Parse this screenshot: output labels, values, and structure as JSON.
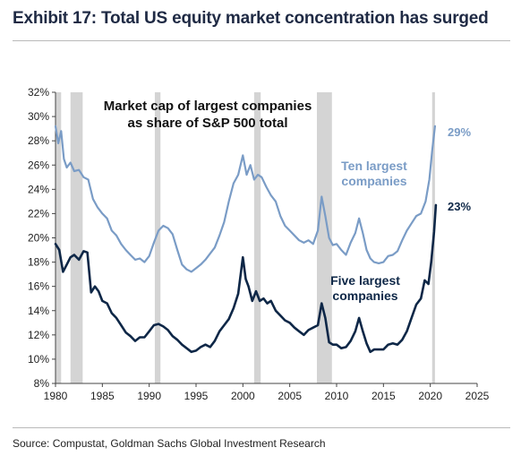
{
  "header": {
    "title": "Exhibit 17: Total US equity market concentration has surged"
  },
  "footer": {
    "source": "Source: Compustat, Goldman Sachs Global Investment Research"
  },
  "chart_data": {
    "type": "line",
    "annotation": [
      "Market cap of largest companies",
      "as share of S&P 500 total"
    ],
    "xlim": [
      1980,
      2025
    ],
    "ylim": [
      8,
      32
    ],
    "x_ticks": [
      1980,
      1985,
      1990,
      1995,
      2000,
      2005,
      2010,
      2015,
      2020,
      2025
    ],
    "y_ticks": [
      8,
      10,
      12,
      14,
      16,
      18,
      20,
      22,
      24,
      26,
      28,
      30,
      32
    ],
    "y_tick_suffix": "%",
    "grid": false,
    "recession_shading": [
      [
        1980.0,
        1980.6
      ],
      [
        1981.6,
        1982.9
      ],
      [
        1990.6,
        1991.2
      ],
      [
        2001.2,
        2001.9
      ],
      [
        2007.9,
        2009.5
      ],
      [
        2020.2,
        2020.5
      ]
    ],
    "series": [
      {
        "name": "Ten largest companies",
        "label_lines": [
          "Ten largest",
          "companies"
        ],
        "end_label": "29%",
        "color": "#7a9cc6",
        "points": [
          [
            1980.0,
            29.2
          ],
          [
            1980.3,
            27.8
          ],
          [
            1980.6,
            28.8
          ],
          [
            1980.9,
            26.5
          ],
          [
            1981.2,
            25.8
          ],
          [
            1981.6,
            26.2
          ],
          [
            1982.0,
            25.5
          ],
          [
            1982.5,
            25.6
          ],
          [
            1983.0,
            25.0
          ],
          [
            1983.5,
            24.8
          ],
          [
            1984.0,
            23.2
          ],
          [
            1984.5,
            22.5
          ],
          [
            1985.0,
            22.0
          ],
          [
            1985.5,
            21.6
          ],
          [
            1986.0,
            20.6
          ],
          [
            1986.5,
            20.2
          ],
          [
            1987.0,
            19.5
          ],
          [
            1987.5,
            19.0
          ],
          [
            1988.0,
            18.6
          ],
          [
            1988.5,
            18.2
          ],
          [
            1989.0,
            18.3
          ],
          [
            1989.5,
            18.0
          ],
          [
            1990.0,
            18.5
          ],
          [
            1990.5,
            19.6
          ],
          [
            1991.0,
            20.6
          ],
          [
            1991.5,
            21.0
          ],
          [
            1992.0,
            20.8
          ],
          [
            1992.5,
            20.3
          ],
          [
            1993.0,
            19.0
          ],
          [
            1993.5,
            17.8
          ],
          [
            1994.0,
            17.4
          ],
          [
            1994.5,
            17.2
          ],
          [
            1995.0,
            17.5
          ],
          [
            1995.5,
            17.8
          ],
          [
            1996.0,
            18.2
          ],
          [
            1996.5,
            18.7
          ],
          [
            1997.0,
            19.2
          ],
          [
            1997.5,
            20.2
          ],
          [
            1998.0,
            21.3
          ],
          [
            1998.5,
            23.0
          ],
          [
            1999.0,
            24.5
          ],
          [
            1999.5,
            25.2
          ],
          [
            2000.0,
            26.8
          ],
          [
            2000.4,
            25.2
          ],
          [
            2000.8,
            26.0
          ],
          [
            2001.2,
            24.8
          ],
          [
            2001.6,
            25.2
          ],
          [
            2002.0,
            25.0
          ],
          [
            2002.5,
            24.2
          ],
          [
            2003.0,
            23.5
          ],
          [
            2003.5,
            23.0
          ],
          [
            2004.0,
            21.8
          ],
          [
            2004.5,
            21.0
          ],
          [
            2005.0,
            20.6
          ],
          [
            2005.5,
            20.2
          ],
          [
            2006.0,
            19.8
          ],
          [
            2006.5,
            19.6
          ],
          [
            2007.0,
            19.8
          ],
          [
            2007.5,
            19.5
          ],
          [
            2008.0,
            20.6
          ],
          [
            2008.4,
            23.4
          ],
          [
            2008.8,
            21.8
          ],
          [
            2009.2,
            20.0
          ],
          [
            2009.6,
            19.4
          ],
          [
            2010.0,
            19.5
          ],
          [
            2010.5,
            19.0
          ],
          [
            2011.0,
            18.6
          ],
          [
            2011.5,
            19.6
          ],
          [
            2012.0,
            20.4
          ],
          [
            2012.4,
            21.6
          ],
          [
            2012.8,
            20.4
          ],
          [
            2013.2,
            19.0
          ],
          [
            2013.6,
            18.3
          ],
          [
            2014.0,
            18.0
          ],
          [
            2014.5,
            17.9
          ],
          [
            2015.0,
            18.0
          ],
          [
            2015.5,
            18.5
          ],
          [
            2016.0,
            18.6
          ],
          [
            2016.5,
            18.9
          ],
          [
            2017.0,
            19.8
          ],
          [
            2017.5,
            20.6
          ],
          [
            2018.0,
            21.2
          ],
          [
            2018.5,
            21.8
          ],
          [
            2019.0,
            22.0
          ],
          [
            2019.5,
            23.0
          ],
          [
            2019.9,
            24.8
          ],
          [
            2020.2,
            27.2
          ],
          [
            2020.5,
            29.2
          ]
        ]
      },
      {
        "name": "Five largest companies",
        "label_lines": [
          "Five largest",
          "companies"
        ],
        "end_label": "23%",
        "color": "#0e2747",
        "points": [
          [
            1980.0,
            19.5
          ],
          [
            1980.4,
            19.0
          ],
          [
            1980.8,
            17.2
          ],
          [
            1981.2,
            17.8
          ],
          [
            1981.6,
            18.4
          ],
          [
            1982.0,
            18.6
          ],
          [
            1982.5,
            18.2
          ],
          [
            1983.0,
            18.9
          ],
          [
            1983.4,
            18.8
          ],
          [
            1983.8,
            15.5
          ],
          [
            1984.2,
            16.0
          ],
          [
            1984.6,
            15.6
          ],
          [
            1985.0,
            14.8
          ],
          [
            1985.5,
            14.6
          ],
          [
            1986.0,
            13.8
          ],
          [
            1986.5,
            13.4
          ],
          [
            1987.0,
            12.8
          ],
          [
            1987.5,
            12.2
          ],
          [
            1988.0,
            11.9
          ],
          [
            1988.5,
            11.5
          ],
          [
            1989.0,
            11.8
          ],
          [
            1989.5,
            11.8
          ],
          [
            1990.0,
            12.3
          ],
          [
            1990.5,
            12.8
          ],
          [
            1991.0,
            12.9
          ],
          [
            1991.5,
            12.7
          ],
          [
            1992.0,
            12.4
          ],
          [
            1992.5,
            11.9
          ],
          [
            1993.0,
            11.6
          ],
          [
            1993.5,
            11.2
          ],
          [
            1994.0,
            10.9
          ],
          [
            1994.5,
            10.6
          ],
          [
            1995.0,
            10.7
          ],
          [
            1995.5,
            11.0
          ],
          [
            1996.0,
            11.2
          ],
          [
            1996.5,
            11.0
          ],
          [
            1997.0,
            11.5
          ],
          [
            1997.5,
            12.3
          ],
          [
            1998.0,
            12.8
          ],
          [
            1998.5,
            13.3
          ],
          [
            1999.0,
            14.2
          ],
          [
            1999.5,
            15.4
          ],
          [
            2000.0,
            18.4
          ],
          [
            2000.3,
            16.6
          ],
          [
            2000.6,
            16.0
          ],
          [
            2001.0,
            14.8
          ],
          [
            2001.4,
            15.6
          ],
          [
            2001.8,
            14.8
          ],
          [
            2002.2,
            15.0
          ],
          [
            2002.6,
            14.6
          ],
          [
            2003.0,
            14.8
          ],
          [
            2003.5,
            14.0
          ],
          [
            2004.0,
            13.6
          ],
          [
            2004.5,
            13.2
          ],
          [
            2005.0,
            13.0
          ],
          [
            2005.5,
            12.6
          ],
          [
            2006.0,
            12.3
          ],
          [
            2006.5,
            12.0
          ],
          [
            2007.0,
            12.4
          ],
          [
            2007.5,
            12.6
          ],
          [
            2008.0,
            12.8
          ],
          [
            2008.4,
            14.6
          ],
          [
            2008.8,
            13.4
          ],
          [
            2009.2,
            11.4
          ],
          [
            2009.6,
            11.2
          ],
          [
            2010.0,
            11.2
          ],
          [
            2010.5,
            10.9
          ],
          [
            2011.0,
            11.0
          ],
          [
            2011.5,
            11.5
          ],
          [
            2012.0,
            12.3
          ],
          [
            2012.4,
            13.4
          ],
          [
            2012.8,
            12.3
          ],
          [
            2013.2,
            11.3
          ],
          [
            2013.6,
            10.6
          ],
          [
            2014.0,
            10.8
          ],
          [
            2014.5,
            10.8
          ],
          [
            2015.0,
            10.8
          ],
          [
            2015.5,
            11.2
          ],
          [
            2016.0,
            11.3
          ],
          [
            2016.5,
            11.2
          ],
          [
            2017.0,
            11.6
          ],
          [
            2017.5,
            12.3
          ],
          [
            2018.0,
            13.4
          ],
          [
            2018.5,
            14.5
          ],
          [
            2019.0,
            15.0
          ],
          [
            2019.4,
            16.5
          ],
          [
            2019.8,
            16.2
          ],
          [
            2020.1,
            18.0
          ],
          [
            2020.4,
            20.5
          ],
          [
            2020.6,
            22.7
          ]
        ]
      }
    ]
  }
}
